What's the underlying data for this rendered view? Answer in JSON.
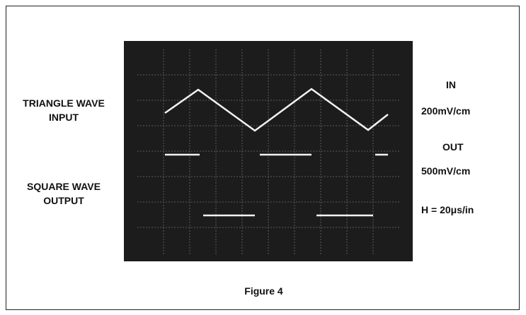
{
  "left_labels": {
    "input": [
      "TRIANGLE WAVE",
      "INPUT"
    ],
    "output": [
      "SQUARE WAVE",
      "OUTPUT"
    ]
  },
  "right_labels": [
    "IN",
    "200mV/cm",
    "OUT",
    "500mV/cm",
    "H = 20μs/in"
  ],
  "caption": "Figure 4"
}
